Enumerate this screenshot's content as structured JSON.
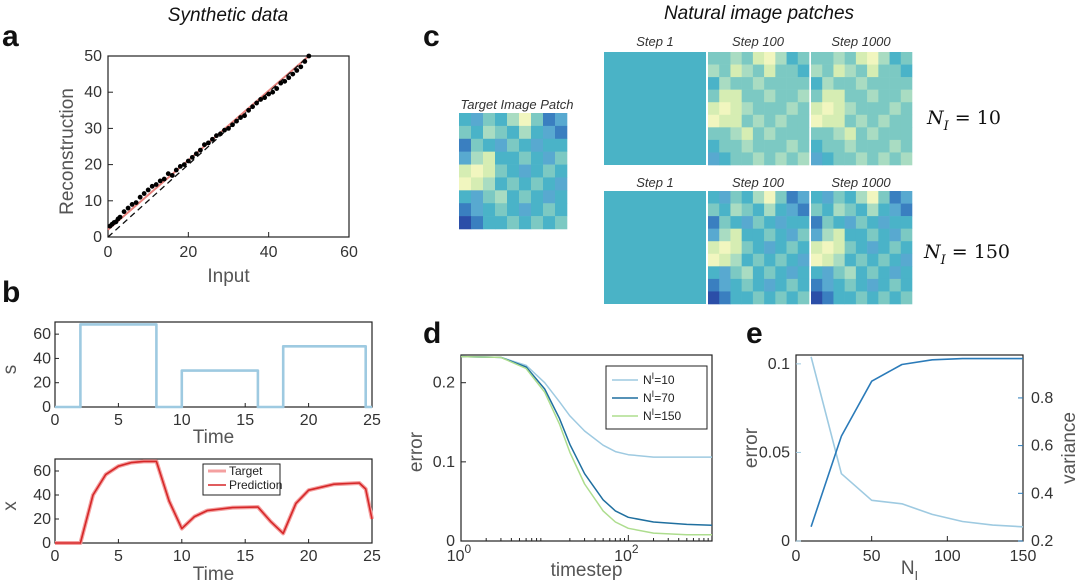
{
  "panels": {
    "a": {
      "letter": "a",
      "title": "Synthetic data",
      "chart_data": {
        "type": "scatter",
        "title": "Synthetic data",
        "xlabel": "Input",
        "ylabel": "Reconstruction",
        "xlim": [
          0,
          60
        ],
        "ylim": [
          0,
          50
        ],
        "xticks": [
          "0",
          "20",
          "40",
          "60"
        ],
        "yticks": [
          "0",
          "10",
          "20",
          "30",
          "40",
          "50"
        ],
        "series": [
          {
            "name": "identity line",
            "style": "dashed",
            "x": [
              0,
              50
            ],
            "y": [
              0,
              50
            ]
          },
          {
            "name": "reconstruction fit",
            "style": "red-line",
            "x": [
              0,
              50
            ],
            "y": [
              2,
              50
            ]
          },
          {
            "name": "samples",
            "style": "points",
            "x": [
              0.5,
              1,
              1.5,
              2,
              2.5,
              3,
              4,
              5,
              6,
              7,
              8,
              9,
              10,
              11,
              12,
              13,
              14,
              15,
              16,
              17,
              18,
              19,
              20,
              21,
              22,
              23,
              24,
              25,
              26,
              27,
              28,
              29,
              30,
              31,
              32,
              33,
              34,
              35,
              36,
              37,
              38,
              39,
              40,
              41,
              42,
              43,
              44,
              45,
              46,
              47,
              48,
              49,
              50
            ],
            "y": [
              3,
              3.5,
              4,
              4.2,
              5,
              5.5,
              7,
              8,
              9,
              9.5,
              11,
              12,
              13,
              14,
              14.5,
              15.5,
              16,
              17.5,
              17,
              18.5,
              19.5,
              20,
              21,
              22,
              23,
              24,
              25.5,
              26,
              27,
              28,
              28.5,
              29.5,
              30,
              31,
              32,
              33,
              33.5,
              35,
              36,
              37,
              38,
              38.5,
              39.5,
              40,
              41,
              42.5,
              43,
              44,
              45,
              46,
              47,
              48.5,
              50
            ]
          }
        ]
      }
    },
    "b": {
      "letter": "b",
      "top": {
        "chart_data": {
          "type": "line",
          "xlabel": "Time",
          "ylabel": "s",
          "xlim": [
            0,
            25
          ],
          "ylim": [
            0,
            70
          ],
          "xticks": [
            "0",
            "5",
            "10",
            "15",
            "20",
            "25"
          ],
          "yticks": [
            "0",
            "20",
            "40",
            "60"
          ],
          "series": [
            {
              "name": "s",
              "color": "#9ecae1",
              "x": [
                0,
                2,
                2,
                8,
                8,
                10,
                10,
                16,
                16,
                18,
                18,
                24.5,
                24.5,
                25
              ],
              "y": [
                0,
                0,
                68,
                68,
                0,
                0,
                30,
                30,
                0,
                0,
                50,
                50,
                0,
                0
              ]
            }
          ]
        }
      },
      "bottom": {
        "chart_data": {
          "type": "line",
          "xlabel": "Time",
          "ylabel": "x",
          "xlim": [
            0,
            25
          ],
          "ylim": [
            0,
            70
          ],
          "xticks": [
            "0",
            "5",
            "10",
            "15",
            "20",
            "25"
          ],
          "yticks": [
            "0",
            "20",
            "40",
            "60"
          ],
          "legend": [
            "Target",
            "Prediction"
          ],
          "series": [
            {
              "name": "Target",
              "color": "#f4a0a0",
              "width": 4,
              "x": [
                0,
                2,
                3,
                4,
                5,
                6,
                7,
                8,
                9,
                10,
                11,
                12,
                14,
                16,
                17,
                18,
                19,
                20,
                22,
                24,
                24.5,
                25
              ],
              "y": [
                0,
                0,
                40,
                57,
                64,
                67,
                68,
                68,
                35,
                12,
                22,
                27,
                29.5,
                30,
                18,
                8,
                33,
                44,
                49,
                50,
                45,
                20
              ]
            },
            {
              "name": "Prediction",
              "color": "#d62728",
              "width": 1.6,
              "x": [
                0,
                2,
                3,
                4,
                5,
                6,
                7,
                8,
                9,
                10,
                11,
                12,
                14,
                16,
                17,
                18,
                19,
                20,
                22,
                24,
                24.5,
                25
              ],
              "y": [
                0,
                0,
                40,
                57,
                64,
                67,
                68,
                68,
                35,
                12,
                22,
                27,
                29.5,
                30,
                18,
                8,
                33,
                44,
                49,
                50,
                45,
                20
              ]
            }
          ]
        }
      }
    },
    "c": {
      "letter": "c",
      "title": "Natural image patches",
      "target_label": "Target Image Patch",
      "row1": {
        "steps": [
          "Step 1",
          "Step 100",
          "Step 1000"
        ],
        "label_lhs": "N",
        "label_sub": "I",
        "label_rhs": "= 10"
      },
      "row2": {
        "steps": [
          "Step 1",
          "Step 100",
          "Step 1000"
        ],
        "label_lhs": "N",
        "label_sub": "I",
        "label_rhs": "= 150"
      }
    },
    "d": {
      "letter": "d",
      "chart_data": {
        "type": "line",
        "xscale": "log",
        "xlabel": "timestep",
        "ylabel": "error",
        "xlim": [
          1,
          1000
        ],
        "ylim": [
          0,
          0.24
        ],
        "xticks": [
          "10",
          "10"
        ],
        "xtick_sups": [
          "0",
          "2"
        ],
        "yticks": [
          "0",
          "0.1",
          "0.2"
        ],
        "legend_prefix": "N",
        "legend_sup": "I",
        "series": [
          {
            "name": "=10",
            "color": "#9ecae1",
            "x": [
              1,
              3,
              6,
              10,
              15,
              20,
              30,
              50,
              70,
              100,
              200,
              500,
              1000
            ],
            "y": [
              0.233,
              0.232,
              0.222,
              0.2,
              0.176,
              0.158,
              0.139,
              0.121,
              0.113,
              0.109,
              0.106,
              0.106,
              0.106
            ]
          },
          {
            "name": "=70",
            "color": "#1f6f9f",
            "x": [
              1,
              3,
              6,
              10,
              15,
              20,
              30,
              50,
              70,
              100,
              200,
              500,
              1000
            ],
            "y": [
              0.233,
              0.232,
              0.22,
              0.192,
              0.155,
              0.122,
              0.085,
              0.052,
              0.038,
              0.03,
              0.024,
              0.021,
              0.02
            ]
          },
          {
            "name": "=150",
            "color": "#addd8e",
            "x": [
              1,
              3,
              6,
              10,
              15,
              20,
              30,
              50,
              70,
              100,
              200,
              500,
              1000
            ],
            "y": [
              0.233,
              0.232,
              0.218,
              0.188,
              0.148,
              0.112,
              0.072,
              0.038,
              0.024,
              0.016,
              0.01,
              0.008,
              0.008
            ]
          }
        ]
      }
    },
    "e": {
      "letter": "e",
      "chart_data": {
        "type": "line",
        "xlabel": "N",
        "xlabel_sub": "I",
        "ylabel_left": "error",
        "ylabel_right": "variance",
        "xlim": [
          0,
          150
        ],
        "ylim_left": [
          0,
          0.105
        ],
        "ylim_right": [
          0.2,
          0.98
        ],
        "xticks": [
          "0",
          "50",
          "100",
          "150"
        ],
        "yticks_left": [
          "0",
          "0.05",
          "0.1"
        ],
        "yticks_right": [
          "0.2",
          "0.4",
          "0.6",
          "0.8"
        ],
        "series": [
          {
            "name": "error",
            "axis": "left",
            "color": "#9ecae1",
            "x": [
              10,
              30,
              50,
              70,
              90,
              110,
              130,
              150
            ],
            "y": [
              0.104,
              0.038,
              0.023,
              0.021,
              0.015,
              0.011,
              0.009,
              0.008
            ]
          },
          {
            "name": "variance",
            "axis": "right",
            "color": "#2b7bb9",
            "x": [
              10,
              30,
              50,
              70,
              90,
              110,
              130,
              150
            ],
            "y": [
              0.26,
              0.64,
              0.87,
              0.94,
              0.96,
              0.965,
              0.965,
              0.965
            ]
          }
        ]
      }
    }
  }
}
